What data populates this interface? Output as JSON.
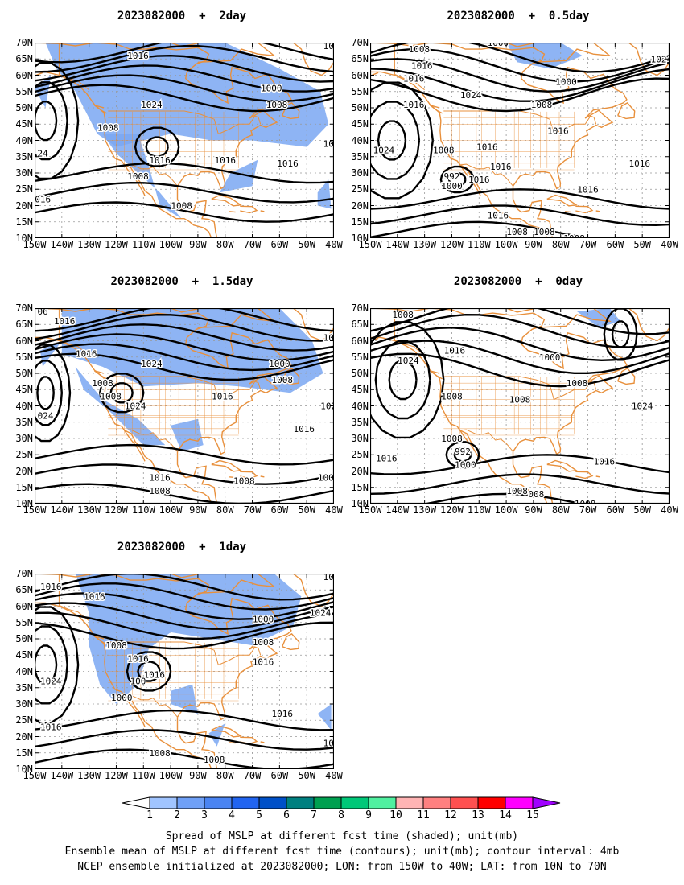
{
  "figure": {
    "caption_lines": [
      "Spread of MSLP at different fcst time (shaded); unit(mb)",
      "Ensemble mean of MSLP at different fcst time (contours); unit(mb); contour interval: 4mb",
      "NCEP ensemble initialized at 2023082000; LON: from 150W to 40W; LAT: from 10N to 70N"
    ]
  },
  "axes": {
    "lat_labels": [
      "70N",
      "65N",
      "60N",
      "55N",
      "50N",
      "45N",
      "40N",
      "35N",
      "30N",
      "25N",
      "20N",
      "15N",
      "10N"
    ],
    "lon_labels": [
      "150W",
      "140W",
      "130W",
      "120W",
      "110W",
      "100W",
      "90W",
      "80W",
      "70W",
      "60W",
      "50W",
      "40W"
    ]
  },
  "panels": [
    {
      "title": "2023082000  +  2day",
      "labels": [
        {
          "text": "1016",
          "lon": -112,
          "lat": 66
        },
        {
          "text": "1000",
          "lon": -63,
          "lat": 56
        },
        {
          "text": "1008",
          "lon": -61,
          "lat": 51
        },
        {
          "text": "1024",
          "lon": -107,
          "lat": 51
        },
        {
          "text": "1008",
          "lon": -123,
          "lat": 44
        },
        {
          "text": "1016",
          "lon": -104,
          "lat": 34
        },
        {
          "text": "1016",
          "lon": -80,
          "lat": 34
        },
        {
          "text": "1016",
          "lon": -57,
          "lat": 33
        },
        {
          "text": "1008",
          "lon": -112,
          "lat": 29
        },
        {
          "text": "1008",
          "lon": -96,
          "lat": 20
        },
        {
          "text": "24",
          "lon": -147,
          "lat": 36
        },
        {
          "text": "016",
          "lon": -147,
          "lat": 22
        },
        {
          "text": "10",
          "lon": -42,
          "lat": 39
        },
        {
          "text": "10",
          "lon": -42,
          "lat": 69
        }
      ]
    },
    {
      "title": "2023082000  +  0.5day",
      "labels": [
        {
          "text": "1000",
          "lon": -103,
          "lat": 70
        },
        {
          "text": "1008",
          "lon": -132,
          "lat": 68
        },
        {
          "text": "1016",
          "lon": -131,
          "lat": 63
        },
        {
          "text": "1016",
          "lon": -134,
          "lat": 59
        },
        {
          "text": "1024",
          "lon": -43,
          "lat": 65
        },
        {
          "text": "1000",
          "lon": -78,
          "lat": 58
        },
        {
          "text": "1024",
          "lon": -113,
          "lat": 54
        },
        {
          "text": "1008",
          "lon": -87,
          "lat": 51
        },
        {
          "text": "1016",
          "lon": -134,
          "lat": 51
        },
        {
          "text": "1016",
          "lon": -81,
          "lat": 43
        },
        {
          "text": "1008",
          "lon": -123,
          "lat": 37
        },
        {
          "text": "1016",
          "lon": -107,
          "lat": 38
        },
        {
          "text": "1024",
          "lon": -145,
          "lat": 37
        },
        {
          "text": "1016",
          "lon": -102,
          "lat": 32
        },
        {
          "text": "1016",
          "lon": -51,
          "lat": 33
        },
        {
          "text": "992",
          "lon": -120,
          "lat": 29
        },
        {
          "text": "1016",
          "lon": -110,
          "lat": 28
        },
        {
          "text": "1000",
          "lon": -120,
          "lat": 26
        },
        {
          "text": "1016",
          "lon": -70,
          "lat": 25
        },
        {
          "text": "1016",
          "lon": -103,
          "lat": 17
        },
        {
          "text": "1008",
          "lon": -96,
          "lat": 12
        },
        {
          "text": "1008",
          "lon": -86,
          "lat": 12
        },
        {
          "text": "1008",
          "lon": -75,
          "lat": 10
        }
      ]
    },
    {
      "title": "2023082000  +  1.5day",
      "labels": [
        {
          "text": "1016",
          "lon": -139,
          "lat": 66
        },
        {
          "text": "1016",
          "lon": -131,
          "lat": 56
        },
        {
          "text": "1024",
          "lon": -107,
          "lat": 53
        },
        {
          "text": "1000",
          "lon": -60,
          "lat": 53
        },
        {
          "text": "1008",
          "lon": -59,
          "lat": 48
        },
        {
          "text": "1008",
          "lon": -125,
          "lat": 47
        },
        {
          "text": "1008",
          "lon": -122,
          "lat": 43
        },
        {
          "text": "1024",
          "lon": -113,
          "lat": 40
        },
        {
          "text": "1016",
          "lon": -81,
          "lat": 43
        },
        {
          "text": "1016",
          "lon": -51,
          "lat": 33
        },
        {
          "text": "1016",
          "lon": -104,
          "lat": 18
        },
        {
          "text": "1008",
          "lon": -104,
          "lat": 14
        },
        {
          "text": "1008",
          "lon": -73,
          "lat": 17
        },
        {
          "text": "024",
          "lon": -146,
          "lat": 37
        },
        {
          "text": "06",
          "lon": -147,
          "lat": 69
        },
        {
          "text": "10",
          "lon": -42,
          "lat": 61
        },
        {
          "text": "102",
          "lon": -42,
          "lat": 40
        },
        {
          "text": "100",
          "lon": -43,
          "lat": 18
        }
      ]
    },
    {
      "title": "2023082000  +  0day",
      "labels": [
        {
          "text": "1008",
          "lon": -138,
          "lat": 68
        },
        {
          "text": "1016",
          "lon": -119,
          "lat": 57
        },
        {
          "text": "1024",
          "lon": -136,
          "lat": 54
        },
        {
          "text": "1000",
          "lon": -84,
          "lat": 55
        },
        {
          "text": "1008",
          "lon": -74,
          "lat": 47
        },
        {
          "text": "1008",
          "lon": -120,
          "lat": 43
        },
        {
          "text": "1008",
          "lon": -95,
          "lat": 42
        },
        {
          "text": "1024",
          "lon": -50,
          "lat": 40
        },
        {
          "text": "1008",
          "lon": -120,
          "lat": 30
        },
        {
          "text": "992",
          "lon": -116,
          "lat": 26
        },
        {
          "text": "1000",
          "lon": -115,
          "lat": 22
        },
        {
          "text": "1016",
          "lon": -144,
          "lat": 24
        },
        {
          "text": "1016",
          "lon": -64,
          "lat": 23
        },
        {
          "text": "1008",
          "lon": -96,
          "lat": 14
        },
        {
          "text": "008",
          "lon": -89,
          "lat": 13
        },
        {
          "text": "1008",
          "lon": -71,
          "lat": 10
        }
      ]
    },
    {
      "title": "2023082000  +  1day",
      "labels": [
        {
          "text": "1016",
          "lon": -144,
          "lat": 66
        },
        {
          "text": "1016",
          "lon": -128,
          "lat": 63
        },
        {
          "text": "1000",
          "lon": -66,
          "lat": 56
        },
        {
          "text": "1008",
          "lon": -120,
          "lat": 48
        },
        {
          "text": "1008",
          "lon": -66,
          "lat": 49
        },
        {
          "text": "1016",
          "lon": -112,
          "lat": 44
        },
        {
          "text": "1016",
          "lon": -66,
          "lat": 43
        },
        {
          "text": "1016",
          "lon": -106,
          "lat": 39
        },
        {
          "text": "100",
          "lon": -112,
          "lat": 37
        },
        {
          "text": "1024",
          "lon": -144,
          "lat": 37
        },
        {
          "text": "1000",
          "lon": -118,
          "lat": 32
        },
        {
          "text": "1016",
          "lon": -59,
          "lat": 27
        },
        {
          "text": "1016",
          "lon": -144,
          "lat": 23
        },
        {
          "text": "1008",
          "lon": -104,
          "lat": 15
        },
        {
          "text": "1008",
          "lon": -84,
          "lat": 13
        },
        {
          "text": "1024",
          "lon": -45,
          "lat": 58
        },
        {
          "text": "10",
          "lon": -42,
          "lat": 69
        },
        {
          "text": "10",
          "lon": -42,
          "lat": 18
        }
      ]
    }
  ],
  "colorbar": {
    "ticks": [
      "1",
      "2",
      "3",
      "4",
      "5",
      "6",
      "7",
      "8",
      "9",
      "10",
      "11",
      "12",
      "13",
      "14",
      "15"
    ],
    "colors": [
      "#ffffff",
      "#a0c4ff",
      "#6fa0f7",
      "#4a84f2",
      "#2164f0",
      "#0050c8",
      "#008080",
      "#00a050",
      "#00c878",
      "#50f0a0",
      "#ffb4b4",
      "#ff8080",
      "#ff5050",
      "#ff0000",
      "#ff00ff",
      "#a000ff"
    ]
  },
  "style": {
    "land_color": "#e8903c",
    "spread_color": "#7aa7f2",
    "contour_color": "#000000"
  }
}
